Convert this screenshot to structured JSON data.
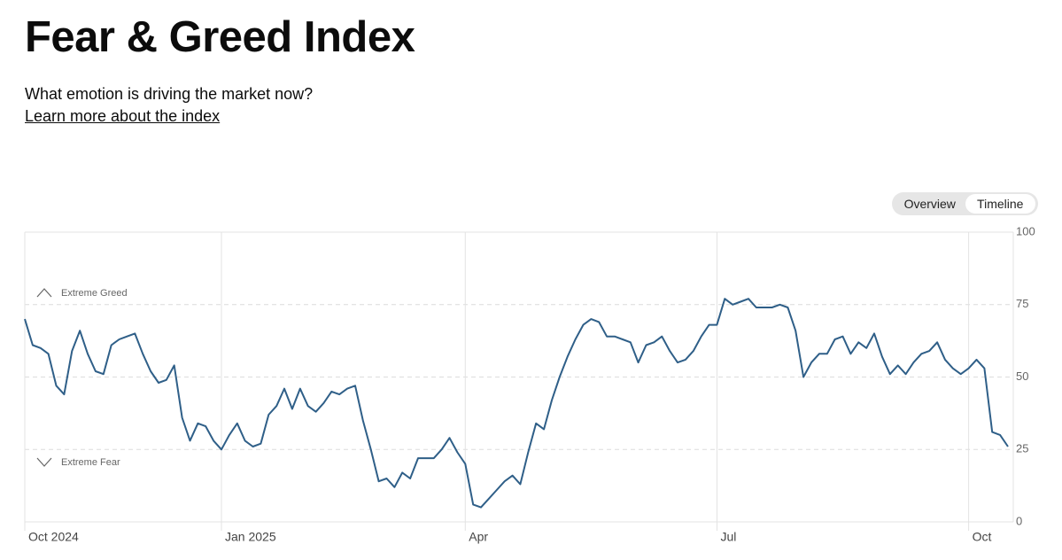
{
  "chart_data": {
    "type": "line",
    "title": "Fear & Greed Index",
    "subtitle": "What emotion is driving the market now?",
    "link": "Learn more about the index",
    "toggle": [
      "Overview",
      "Timeline"
    ],
    "annotations": [
      "Extreme Greed",
      "Extreme Fear"
    ],
    "categories": [
      "Oct 2024",
      null,
      null,
      null,
      null,
      null,
      null,
      null,
      null,
      null,
      null,
      null,
      null,
      null,
      null,
      null,
      null,
      null,
      null,
      null,
      null,
      null,
      null,
      null,
      null,
      "Jan 2025",
      null,
      null,
      null,
      null,
      null,
      null,
      null,
      null,
      null,
      null,
      null,
      null,
      null,
      null,
      null,
      null,
      null,
      null,
      null,
      null,
      null,
      null,
      null,
      null,
      null,
      null,
      null,
      null,
      null,
      null,
      "Apr",
      null,
      null,
      null,
      null,
      null,
      null,
      null,
      null,
      null,
      null,
      null,
      null,
      null,
      null,
      null,
      null,
      null,
      null,
      null,
      null,
      null,
      null,
      null,
      null,
      null,
      null,
      null,
      null,
      null,
      null,
      null,
      "Jul",
      null,
      null,
      null,
      null,
      null,
      null,
      null,
      null,
      null,
      null,
      null,
      null,
      null,
      null,
      null,
      null,
      null,
      null,
      null,
      null,
      null,
      null,
      null,
      null,
      null,
      null,
      null,
      null,
      null,
      null,
      null,
      "Oct",
      null,
      null,
      null,
      null,
      null
    ],
    "series": [
      {
        "name": "Fear & Greed Index",
        "color": "#2f5f88",
        "values": [
          70,
          61,
          60,
          58,
          47,
          44,
          59,
          66,
          58,
          52,
          51,
          61,
          63,
          64,
          65,
          58,
          52,
          48,
          49,
          54,
          36,
          28,
          34,
          33,
          28,
          25,
          30,
          34,
          28,
          26,
          27,
          37,
          40,
          46,
          39,
          46,
          40,
          38,
          41,
          45,
          44,
          46,
          47,
          35,
          25,
          14,
          15,
          12,
          17,
          15,
          22,
          22,
          22,
          25,
          29,
          24,
          20,
          6,
          5,
          8,
          11,
          14,
          16,
          13,
          24,
          34,
          32,
          42,
          50,
          57,
          63,
          68,
          70,
          69,
          64,
          64,
          63,
          62,
          55,
          61,
          62,
          64,
          59,
          55,
          56,
          59,
          64,
          68,
          68,
          77,
          75,
          76,
          77,
          74,
          74,
          74,
          75,
          74,
          66,
          50,
          55,
          58,
          58,
          63,
          64,
          58,
          62,
          60,
          65,
          57,
          51,
          54,
          51,
          55,
          58,
          59,
          62,
          56,
          53,
          51,
          53,
          56,
          53,
          31,
          30,
          26
        ]
      }
    ],
    "ylim": [
      0,
      100
    ],
    "yticks": [
      0,
      25,
      50,
      75,
      100
    ],
    "grid": true
  }
}
